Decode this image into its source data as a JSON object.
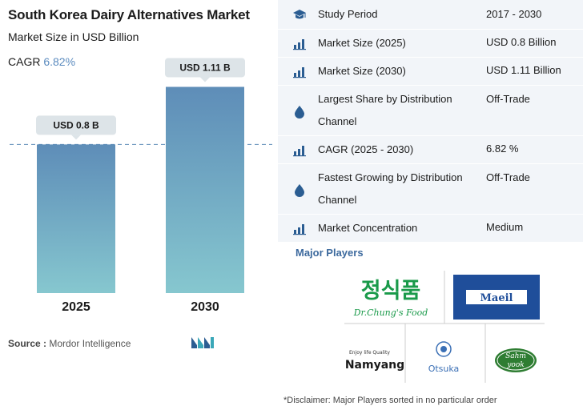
{
  "header": {
    "title": "South Korea Dairy Alternatives Market",
    "subtitle": "Market Size in USD Billion",
    "cagr_label": "CAGR",
    "cagr_value": "6.82%"
  },
  "chart_data": {
    "type": "bar",
    "categories": [
      "2025",
      "2030"
    ],
    "values": [
      0.8,
      1.11
    ],
    "data_labels": [
      "USD 0.8 B",
      "USD 1.11 B"
    ],
    "grid": false,
    "reference_line": "dashed line at 2025 value"
  },
  "source": {
    "label": "Source :",
    "text": "Mordor Intelligence"
  },
  "study_table": {
    "rows": [
      {
        "icon": "graduation-cap-icon",
        "label": "Study Period",
        "value": "2017 - 2030"
      },
      {
        "icon": "bar-chart-icon",
        "label": "Market Size (2025)",
        "value": "USD 0.8 Billion"
      },
      {
        "icon": "bar-chart-icon",
        "label": "Market Size (2030)",
        "value": "USD 1.11 Billion"
      },
      {
        "icon": "drop-icon",
        "label": "Largest Share by Distribution Channel",
        "value": "Off-Trade"
      },
      {
        "icon": "bar-chart-icon",
        "label": "CAGR (2025 - 2030)",
        "value": "6.82 %"
      },
      {
        "icon": "drop-icon",
        "label": "Fastest Growing by Distribution Channel",
        "value": "Off-Trade"
      },
      {
        "icon": "bar-chart-icon",
        "label": "Market Concentration",
        "value": "Medium"
      }
    ]
  },
  "players": {
    "title": "Major Players",
    "logos": [
      "Dr.Chung's Food",
      "Maeil",
      "Namyang",
      "Otsuka",
      "Sahmyook"
    ],
    "logo_text": {
      "chung_top": "정식품",
      "chung_sub": "Dr.Chung's Food",
      "maeil": "Maeil",
      "namyang_tag": "Enjoy life Quality",
      "namyang": "Namyang",
      "otsuka": "Otsuka",
      "sahmyook_a": "Sahm",
      "sahmyook_b": "yook"
    }
  },
  "disclaimer": "*Disclaimer: Major Players sorted in no particular order",
  "colors": {
    "bar_top": "#5e8db8",
    "bar_bottom": "#86c7cf",
    "panel_bg": "#f2f5f9",
    "accent_blue": "#2b5d92",
    "players_title": "#3d6a9e"
  }
}
